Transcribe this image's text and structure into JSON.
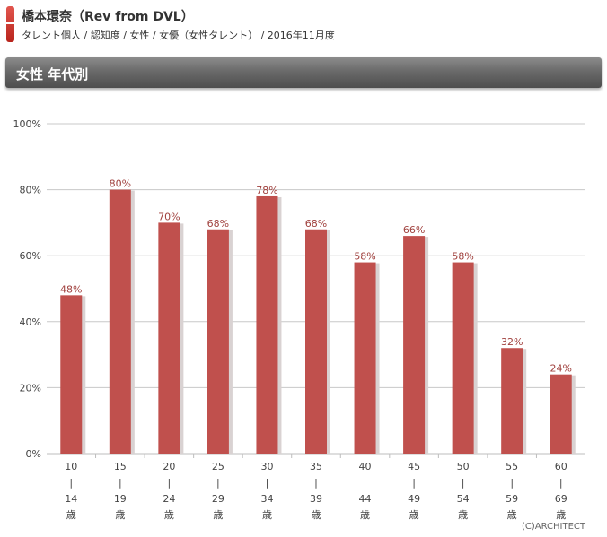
{
  "header": {
    "title": "橋本環奈（Rev from DVL）",
    "subtitle": "タレント個人 / 認知度 / 女性 / 女優（女性タレント） / 2016年11月度",
    "accent_color": "#c9322a"
  },
  "section": {
    "title": "女性 年代別"
  },
  "chart_data": {
    "type": "bar",
    "categories": [
      "10\n|\n14\n歳",
      "15\n|\n19\n歳",
      "20\n|\n24\n歳",
      "25\n|\n29\n歳",
      "30\n|\n34\n歳",
      "35\n|\n39\n歳",
      "40\n|\n44\n歳",
      "45\n|\n49\n歳",
      "50\n|\n54\n歳",
      "55\n|\n59\n歳",
      "60\n|\n69\n歳"
    ],
    "values": [
      48,
      80,
      70,
      68,
      78,
      68,
      58,
      66,
      58,
      32,
      24
    ],
    "data_labels": [
      "48%",
      "80%",
      "70%",
      "68%",
      "78%",
      "68%",
      "58%",
      "66%",
      "58%",
      "32%",
      "24%"
    ],
    "y_ticks": [
      0,
      20,
      40,
      60,
      80,
      100
    ],
    "y_tick_labels": [
      "0%",
      "20%",
      "40%",
      "60%",
      "80%",
      "100%"
    ],
    "ylim": [
      0,
      100
    ],
    "grid": true,
    "bar_color": "#c0504d",
    "label_color": "#a0403d"
  },
  "footer": {
    "copyright": "(C)ARCHITECT"
  }
}
